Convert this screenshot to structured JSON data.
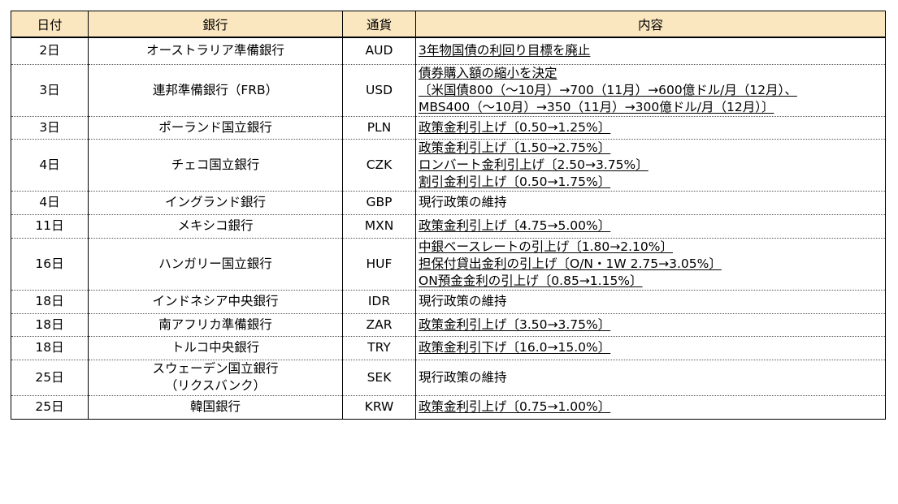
{
  "headers": {
    "date": "日付",
    "bank": "銀行",
    "currency": "通貨",
    "content": "内容"
  },
  "rows": [
    {
      "date": "2日",
      "bank": [
        "オーストラリア準備銀行"
      ],
      "currency": "AUD",
      "content": [
        {
          "text": "3年物国債の利回り目標を廃止",
          "underline": true
        }
      ]
    },
    {
      "date": "3日",
      "bank": [
        "連邦準備銀行（FRB）"
      ],
      "currency": "USD",
      "content": [
        {
          "text": "債券購入額の縮小を決定",
          "underline": true
        },
        {
          "text": "〔米国債800（～10月）→700（11月）→600億ドル/月（12月）、",
          "underline": true
        },
        {
          "text": " MBS400（～10月）→350（11月）→300億ドル/月（12月）〕",
          "underline": true
        }
      ]
    },
    {
      "date": "3日",
      "bank": [
        "ポーランド国立銀行"
      ],
      "currency": "PLN",
      "content": [
        {
          "text": "政策金利引上げ〔0.50→1.25%〕",
          "underline": true
        }
      ]
    },
    {
      "date": "4日",
      "bank": [
        "チェコ国立銀行"
      ],
      "currency": "CZK",
      "content": [
        {
          "text": "政策金利引上げ〔1.50→2.75%〕",
          "underline": true
        },
        {
          "text": "ロンバート金利引上げ〔2.50→3.75%〕",
          "underline": true
        },
        {
          "text": "割引金利引上げ〔0.50→1.75%〕",
          "underline": true
        }
      ]
    },
    {
      "date": "4日",
      "bank": [
        "イングランド銀行"
      ],
      "currency": "GBP",
      "content": [
        {
          "text": "現行政策の維持",
          "underline": false
        }
      ]
    },
    {
      "date": "11日",
      "bank": [
        "メキシコ銀行"
      ],
      "currency": "MXN",
      "content": [
        {
          "text": "政策金利引上げ〔4.75→5.00%〕",
          "underline": true
        }
      ]
    },
    {
      "date": "16日",
      "bank": [
        "ハンガリー国立銀行"
      ],
      "currency": "HUF",
      "content": [
        {
          "text": "中銀ベースレートの引上げ〔1.80→2.10%〕",
          "underline": true
        },
        {
          "text": "担保付貸出金利の引上げ〔O/N・1W 2.75→3.05%〕",
          "underline": true
        },
        {
          "text": "ON預金金利の引上げ〔0.85→1.15%〕",
          "underline": true
        }
      ]
    },
    {
      "date": "18日",
      "bank": [
        "インドネシア中央銀行"
      ],
      "currency": "IDR",
      "content": [
        {
          "text": "現行政策の維持",
          "underline": false
        }
      ]
    },
    {
      "date": "18日",
      "bank": [
        "南アフリカ準備銀行"
      ],
      "currency": "ZAR",
      "content": [
        {
          "text": "政策金利引上げ〔3.50→3.75%〕",
          "underline": true
        }
      ]
    },
    {
      "date": "18日",
      "bank": [
        "トルコ中央銀行"
      ],
      "currency": "TRY",
      "content": [
        {
          "text": "政策金利引下げ〔16.0→15.0%〕",
          "underline": true
        }
      ]
    },
    {
      "date": "25日",
      "bank": [
        "スウェーデン国立銀行",
        "（リクスバンク）"
      ],
      "currency": "SEK",
      "content": [
        {
          "text": "現行政策の維持",
          "underline": false
        }
      ]
    },
    {
      "date": "25日",
      "bank": [
        "韓国銀行"
      ],
      "currency": "KRW",
      "content": [
        {
          "text": "政策金利引上げ〔0.75→1.00%〕",
          "underline": true
        }
      ]
    }
  ]
}
